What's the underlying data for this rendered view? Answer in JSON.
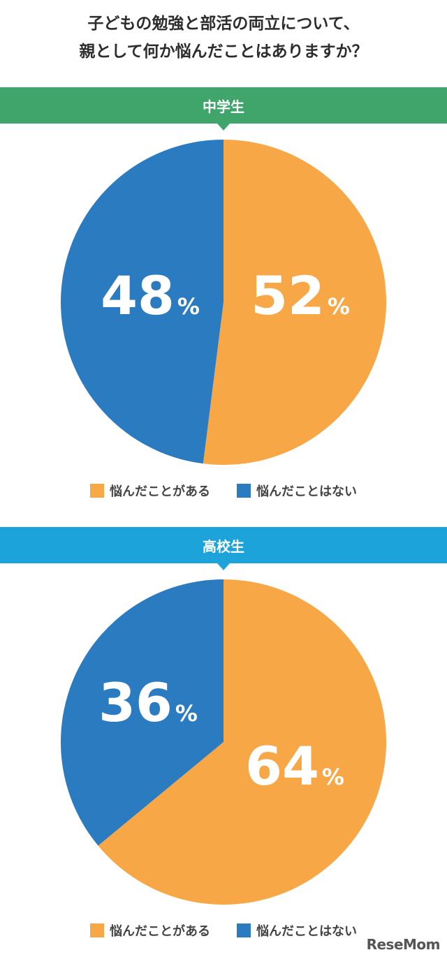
{
  "title": {
    "line1": "子どもの勉強と部活の両立について、",
    "line2": "親として何か悩んだことはありますか？"
  },
  "colors": {
    "orange": "#F7A746",
    "blue": "#2B7BC1",
    "green_banner": "#3FA56A",
    "cyan_banner": "#1CA3D9"
  },
  "legend": {
    "yes": "悩んだことがある",
    "no": "悩んだことはない"
  },
  "logo": "ReseMom",
  "chart_data": [
    {
      "type": "pie",
      "title": "中学生",
      "categories": [
        "悩んだことがある",
        "悩んだことはない"
      ],
      "values": [
        52,
        48
      ],
      "labels": [
        "52",
        "48"
      ],
      "unit": "%"
    },
    {
      "type": "pie",
      "title": "高校生",
      "categories": [
        "悩んだことがある",
        "悩んだことはない"
      ],
      "values": [
        64,
        36
      ],
      "labels": [
        "64",
        "36"
      ],
      "unit": "%"
    }
  ]
}
